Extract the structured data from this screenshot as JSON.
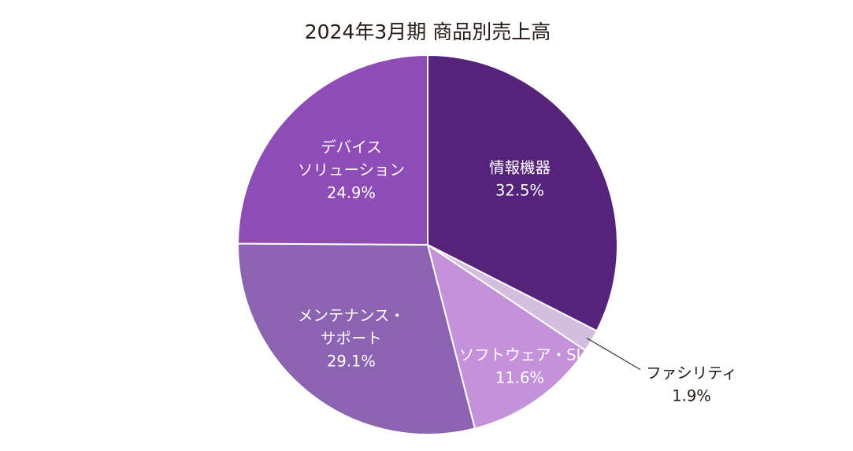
{
  "chart_data": {
    "type": "pie",
    "title": "2024年3月期 商品別売上高",
    "categories": [
      "情報機器",
      "ファシリティ",
      "ソフトウェア・SI",
      "メンテナンス・サポート",
      "デバイスソリューション"
    ],
    "values": [
      32.5,
      1.9,
      11.6,
      29.1,
      24.9
    ],
    "value_suffix": "%",
    "colors": [
      "#55247A",
      "#D3BEDF",
      "#C492D8",
      "#8B63B0",
      "#8E4CB7"
    ],
    "label_colors": [
      "#FFFFFF",
      "#231815",
      "#FFFFFF",
      "#FFFFFF",
      "#FFFFFF"
    ],
    "clockwise": true,
    "legend": false
  }
}
